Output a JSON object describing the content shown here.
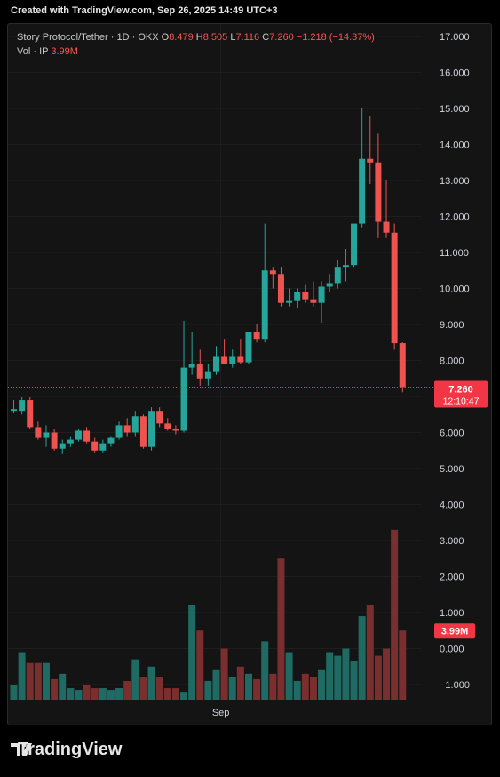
{
  "header": {
    "created": "Created with TradingView.com, Sep 26, 2025 14:49 UTC+3"
  },
  "legend": {
    "symbol": "Story Protocol/Tether · 1D · OKX",
    "o_label": "O",
    "o_val": "8.479",
    "h_label": "H",
    "h_val": "8.505",
    "l_label": "L",
    "l_val": "7.116",
    "c_label": "C",
    "c_val": "7.260",
    "change": "−1.218 (−14.37%)",
    "vol_label": "Vol · IP",
    "vol_val": "3.99M"
  },
  "price_badge": {
    "price": "7.260",
    "countdown": "12:10:47"
  },
  "vol_badge": "3.99M",
  "footer": {
    "brand": "TradingView"
  },
  "colors": {
    "up": "#26a69a",
    "down": "#ef5350",
    "vol_up": "#1f6b63",
    "vol_down": "#7a2e2e",
    "badge": "#f23645"
  },
  "chart_data": {
    "type": "candlestick",
    "title": "Story Protocol/Tether · 1D · OKX",
    "ylabels": [
      "17.000",
      "16.000",
      "15.000",
      "14.000",
      "13.000",
      "12.000",
      "11.000",
      "10.000",
      "9.000",
      "8.000",
      "7.000",
      "6.000",
      "5.000",
      "4.000",
      "3.000",
      "2.000",
      "1.000",
      "0.000",
      "−1.000"
    ],
    "yticks": [
      17,
      16,
      15,
      14,
      13,
      12,
      11,
      10,
      9,
      8,
      7,
      6,
      5,
      4,
      3,
      2,
      1,
      0,
      -1
    ],
    "ylim": [
      -1.4,
      17.4
    ],
    "xlabels": [
      {
        "label": "Sep",
        "index": 26
      }
    ],
    "ohlc": [
      [
        6.6,
        6.9,
        6.55,
        6.65
      ],
      [
        6.6,
        7.0,
        6.5,
        6.9
      ],
      [
        6.9,
        7.0,
        6.1,
        6.15
      ],
      [
        6.15,
        6.3,
        5.8,
        5.85
      ],
      [
        5.85,
        6.2,
        5.6,
        6.0
      ],
      [
        6.0,
        6.1,
        5.5,
        5.55
      ],
      [
        5.55,
        5.8,
        5.4,
        5.7
      ],
      [
        5.7,
        5.9,
        5.6,
        5.8
      ],
      [
        5.8,
        6.1,
        5.75,
        6.05
      ],
      [
        6.05,
        6.15,
        5.7,
        5.75
      ],
      [
        5.75,
        5.85,
        5.45,
        5.5
      ],
      [
        5.5,
        5.8,
        5.45,
        5.7
      ],
      [
        5.7,
        5.9,
        5.6,
        5.85
      ],
      [
        5.85,
        6.3,
        5.8,
        6.2
      ],
      [
        6.2,
        6.4,
        5.9,
        6.0
      ],
      [
        6.0,
        6.6,
        5.9,
        6.45
      ],
      [
        6.45,
        6.5,
        5.55,
        5.6
      ],
      [
        5.6,
        6.7,
        5.5,
        6.6
      ],
      [
        6.6,
        6.7,
        6.15,
        6.25
      ],
      [
        6.25,
        6.4,
        6.05,
        6.1
      ],
      [
        6.1,
        6.2,
        5.95,
        6.05
      ],
      [
        6.05,
        9.1,
        6.0,
        7.8
      ],
      [
        7.8,
        8.8,
        7.6,
        7.9
      ],
      [
        7.9,
        8.3,
        7.3,
        7.5
      ],
      [
        7.5,
        7.9,
        7.3,
        7.7
      ],
      [
        7.7,
        8.4,
        7.6,
        8.1
      ],
      [
        8.1,
        8.6,
        7.9,
        7.9
      ],
      [
        7.9,
        8.3,
        7.8,
        8.1
      ],
      [
        8.1,
        8.6,
        7.9,
        7.95
      ],
      [
        7.95,
        8.8,
        7.9,
        8.8
      ],
      [
        8.8,
        9.0,
        8.5,
        8.6
      ],
      [
        8.6,
        11.8,
        8.5,
        10.5
      ],
      [
        10.5,
        10.6,
        10.0,
        10.4
      ],
      [
        10.4,
        10.6,
        9.5,
        9.6
      ],
      [
        9.6,
        10.0,
        9.5,
        9.65
      ],
      [
        9.65,
        10.0,
        9.45,
        9.9
      ],
      [
        9.9,
        10.1,
        9.6,
        9.7
      ],
      [
        9.7,
        10.2,
        9.5,
        9.6
      ],
      [
        9.6,
        10.2,
        9.05,
        10.05
      ],
      [
        10.05,
        10.4,
        9.9,
        10.15
      ],
      [
        10.15,
        10.8,
        10.0,
        10.6
      ],
      [
        10.6,
        11.1,
        10.2,
        10.65
      ],
      [
        10.65,
        11.8,
        10.6,
        11.8
      ],
      [
        11.8,
        15.0,
        11.7,
        13.6
      ],
      [
        13.6,
        14.8,
        12.9,
        13.5
      ],
      [
        13.5,
        14.3,
        11.4,
        11.85
      ],
      [
        11.85,
        13.0,
        11.4,
        11.55
      ],
      [
        11.55,
        11.8,
        8.3,
        8.48
      ],
      [
        8.48,
        8.505,
        7.116,
        7.26
      ]
    ],
    "volume": [
      -1.0,
      -0.1,
      -0.4,
      -0.4,
      -0.4,
      -0.85,
      -0.7,
      -1.1,
      -1.15,
      -1.0,
      -1.1,
      -1.1,
      -1.15,
      -1.1,
      -0.9,
      -0.3,
      -0.8,
      -0.5,
      -0.8,
      -1.1,
      -1.1,
      -1.2,
      1.2,
      0.5,
      -0.9,
      -0.6,
      0.0,
      -0.8,
      -0.5,
      -0.7,
      -0.85,
      0.2,
      -0.7,
      2.5,
      -0.1,
      -0.9,
      -0.7,
      -0.8,
      -0.6,
      -0.1,
      -0.2,
      0.0,
      -0.35,
      0.9,
      1.2,
      -0.2,
      0.0,
      3.3,
      0.5
    ]
  }
}
